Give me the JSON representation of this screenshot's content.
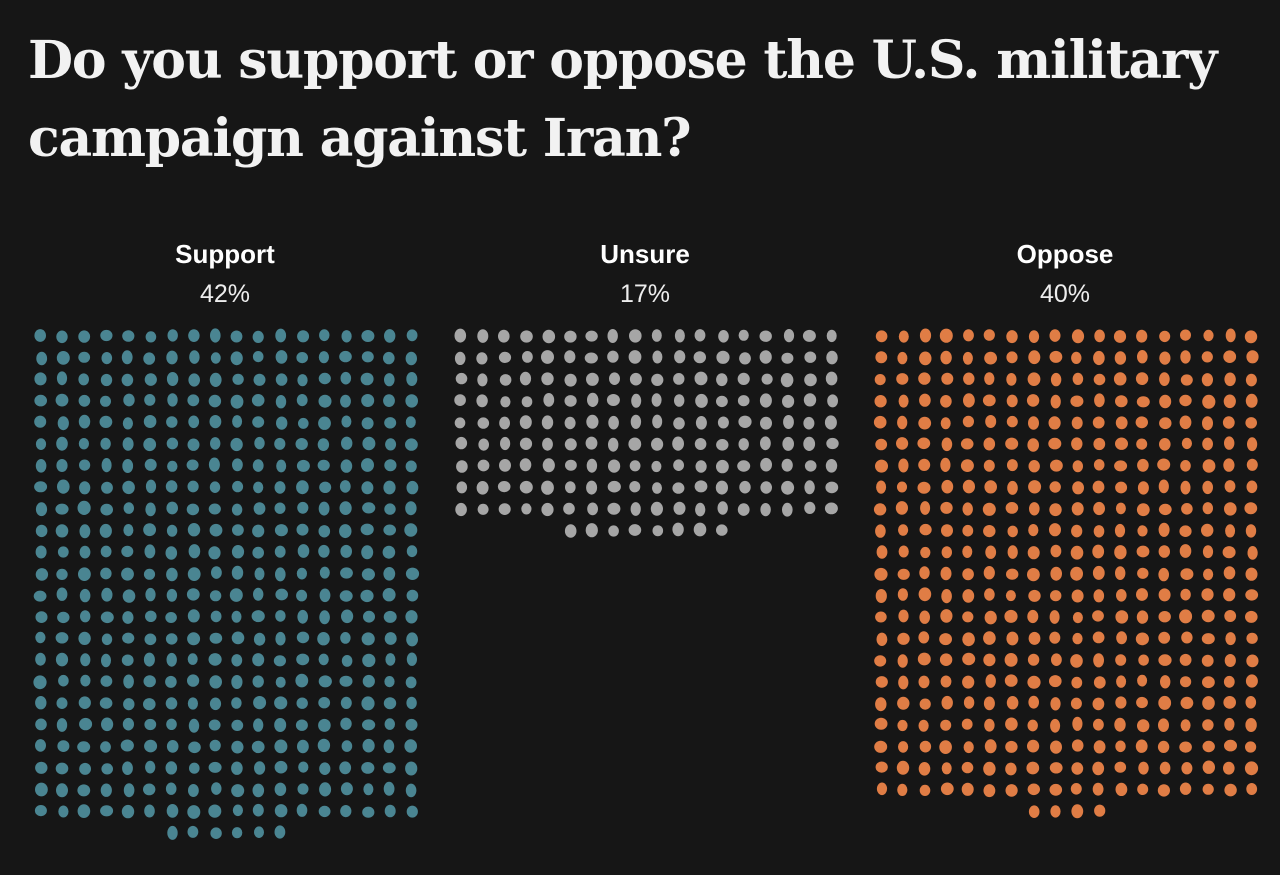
{
  "title": "Do you support or oppose the U.S. military campaign against Iran?",
  "chart_data": {
    "type": "waffle",
    "title": "Do you support or oppose the U.S. military campaign against Iran?",
    "categories": [
      "Support",
      "Unsure",
      "Oppose"
    ],
    "values": [
      42,
      17,
      40
    ],
    "value_labels": [
      "42%",
      "17%",
      "40%"
    ],
    "colors": [
      "#4a8592",
      "#a6a6a6",
      "#e07d45"
    ],
    "dots_per_percent": 10,
    "columns": 18
  }
}
